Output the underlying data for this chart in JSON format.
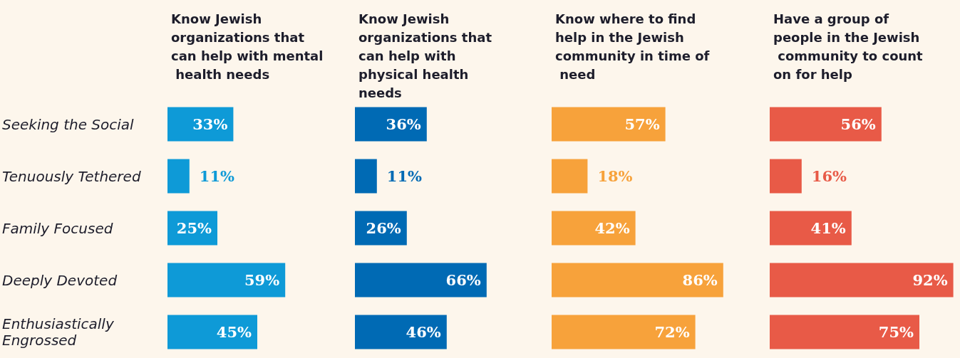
{
  "chart_data": [
    {
      "type": "bar",
      "orientation": "horizontal",
      "title": "Know Jewish organizations that can help with mental health needs",
      "categories": [
        "Seeking the Social",
        "Tenuously Tethered",
        "Family Focused",
        "Deeply Devoted",
        "Enthusiastically Engrossed"
      ],
      "values": [
        33,
        11,
        25,
        59,
        45
      ],
      "value_labels": [
        "33%",
        "11%",
        "25%",
        "59%",
        "45%"
      ],
      "color": "#0e9ad7",
      "tick_labels": "y"
    },
    {
      "type": "bar",
      "orientation": "horizontal",
      "title": "Know Jewish organizations that can help with physical health needs",
      "categories": [
        "Seeking the Social",
        "Tenuously Tethered",
        "Family Focused",
        "Deeply Devoted",
        "Enthusiastically Engrossed"
      ],
      "values": [
        36,
        11,
        26,
        66,
        46
      ],
      "value_labels": [
        "36%",
        "11%",
        "26%",
        "66%",
        "46%"
      ],
      "color": "#006ab4",
      "tick_labels": false
    },
    {
      "type": "bar",
      "orientation": "horizontal",
      "title": "Know where to find help in the Jewish community in time of need",
      "categories": [
        "Seeking the Social",
        "Tenuously Tethered",
        "Family Focused",
        "Deeply Devoted",
        "Enthusiastically Engrossed"
      ],
      "values": [
        57,
        18,
        42,
        86,
        72
      ],
      "value_labels": [
        "57%",
        "18%",
        "42%",
        "86%",
        "72%"
      ],
      "color": "#f7a23b",
      "tick_labels": false
    },
    {
      "type": "bar",
      "orientation": "horizontal",
      "title": "Have a group of people in the Jewish community to count on for help",
      "categories": [
        "Seeking the Social",
        "Tenuously Tethered",
        "Family Focused",
        "Deeply Devoted",
        "Enthusiastically Engrossed"
      ],
      "values": [
        56,
        16,
        41,
        92,
        75
      ],
      "value_labels": [
        "56%",
        "16%",
        "41%",
        "92%",
        "75%"
      ],
      "color": "#e85a47",
      "tick_labels": false
    }
  ]
}
